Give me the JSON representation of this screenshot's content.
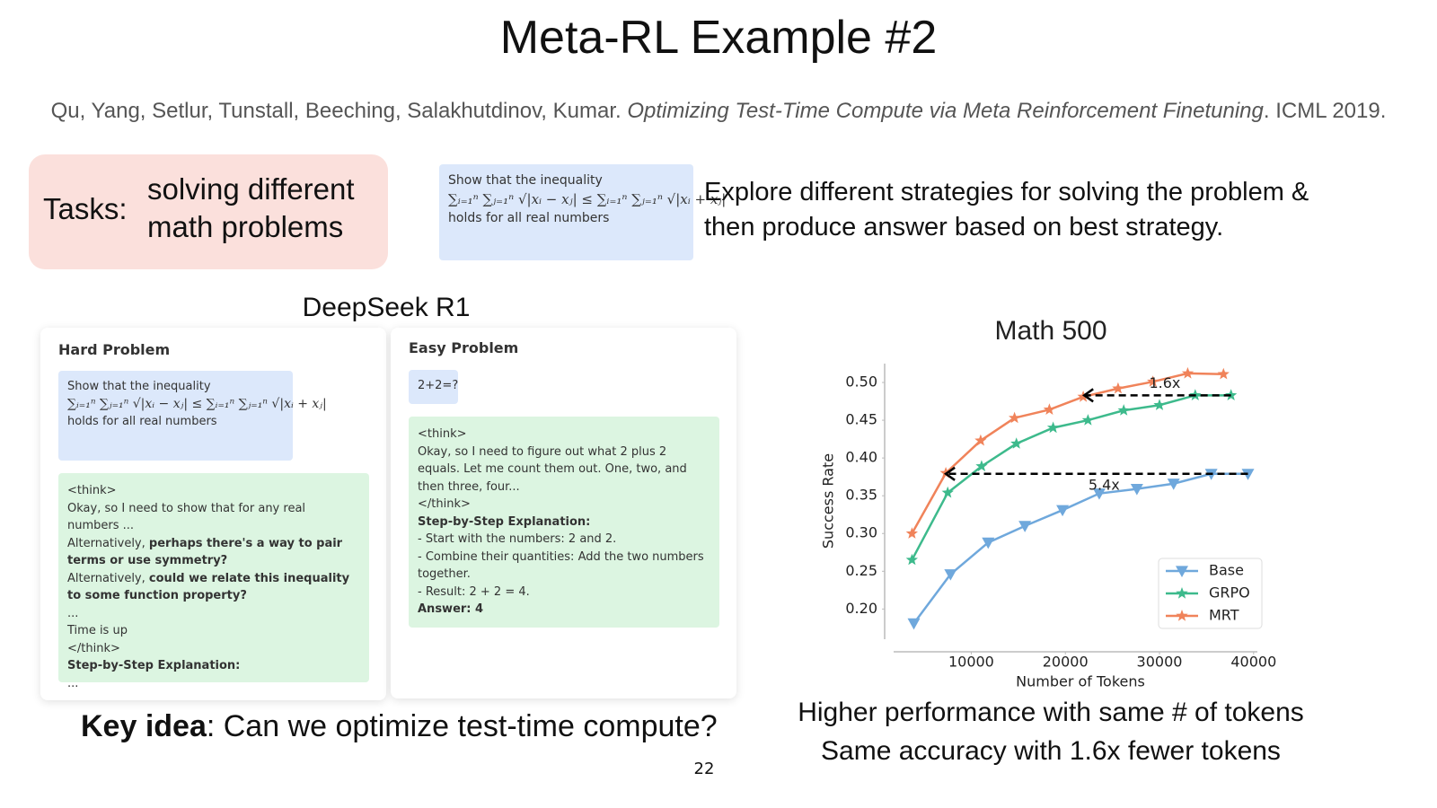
{
  "title": "Meta-RL Example #2",
  "citation": {
    "authors": "Qu, Yang, Setlur, Tunstall, Beeching, Salakhutdinov, Kumar.",
    "paper": "Optimizing Test-Time Compute via Meta Reinforcement Finetuning",
    "venue": ". ICML 2019."
  },
  "tasks": {
    "label": "Tasks:",
    "lines": [
      "solving different",
      "math problems"
    ]
  },
  "problem": {
    "intro": "Show that the inequality",
    "formula": "∑ᵢ₌₁ⁿ ∑ⱼ₌₁ⁿ √|xᵢ − xⱼ| ≤ ∑ᵢ₌₁ⁿ ∑ⱼ₌₁ⁿ √|xᵢ + xⱼ|",
    "outro": "holds for all real numbers"
  },
  "explore": [
    "Explore different strategies for solving the problem &",
    "then produce answer based on best strategy."
  ],
  "deepseek_label": "DeepSeek R1",
  "hard_card": {
    "heading": "Hard Problem",
    "problem": {
      "intro": "Show that the inequality",
      "formula": "∑ᵢ₌₁ⁿ ∑ⱼ₌₁ⁿ √|xᵢ − xⱼ| ≤ ∑ᵢ₌₁ⁿ ∑ⱼ₌₁ⁿ √|xᵢ + xⱼ|",
      "outro": "holds for all real numbers"
    },
    "think": [
      [
        {
          "text": "<think>"
        }
      ],
      [
        {
          "text": "Okay, so I need to show that for any real numbers ..."
        }
      ],
      [
        {
          "text": "Alternatively, "
        },
        {
          "text": "perhaps there's a way to pair terms or use symmetry?",
          "bold": true
        }
      ],
      [
        {
          "text": "Alternatively, "
        },
        {
          "text": "could we relate this inequality to some function property?",
          "bold": true
        }
      ],
      [
        {
          "text": "..."
        }
      ],
      [
        {
          "text": "Time is up"
        }
      ],
      [
        {
          "text": "</think>"
        }
      ],
      [
        {
          "text": "Step-by-Step Explanation:",
          "bold": true
        }
      ],
      [
        {
          "text": "..."
        }
      ]
    ]
  },
  "easy_card": {
    "heading": "Easy Problem",
    "problem": "2+2=?",
    "think": [
      [
        {
          "text": "<think>"
        }
      ],
      [
        {
          "text": "Okay, so I need to figure out what 2 plus 2 equals. Let me count them out. One, two, and then three, four..."
        }
      ],
      [
        {
          "text": "</think>"
        }
      ],
      [
        {
          "text": "Step-by-Step Explanation:",
          "bold": true
        }
      ],
      [
        {
          "text": "- Start with the numbers: 2 and 2."
        }
      ],
      [
        {
          "text": "- Combine their quantities: Add the two numbers together."
        }
      ],
      [
        {
          "text": "- Result: 2 + 2 = 4."
        }
      ],
      [
        {
          "text": "Answer: 4",
          "bold": true
        }
      ]
    ]
  },
  "key_idea": {
    "label": "Key idea",
    "text": ": Can we optimize test-time compute?"
  },
  "page_number": "22",
  "chart_data": {
    "type": "line",
    "title": "Math 500",
    "x_label": "Number of Tokens",
    "y_label": "Success Rate",
    "xlim": [
      800,
      40400
    ],
    "ylim": [
      0.16,
      0.525
    ],
    "xticks": [
      10000,
      20000,
      30000,
      40000
    ],
    "yticks": [
      {
        "value": 0.2,
        "label": "0.20"
      },
      {
        "value": 0.25,
        "label": "0.25"
      },
      {
        "value": 0.3,
        "label": "0.30"
      },
      {
        "value": 0.35,
        "label": "0.35"
      },
      {
        "value": 0.4,
        "label": "0.40"
      },
      {
        "value": 0.45,
        "label": "0.45"
      },
      {
        "value": 0.5,
        "label": "0.50"
      }
    ],
    "grid": false,
    "legend": "lower right",
    "series": [
      {
        "name": "Base",
        "color": "#6fa8dc",
        "marker": "triangle-down",
        "x": [
          3900,
          7800,
          11800,
          15700,
          19700,
          23600,
          27600,
          31500,
          35500,
          39400
        ],
        "values": [
          0.181,
          0.246,
          0.288,
          0.31,
          0.331,
          0.353,
          0.359,
          0.366,
          0.379,
          0.379
        ]
      },
      {
        "name": "GRPO",
        "color": "#3dba8c",
        "marker": "star",
        "x": [
          3700,
          7500,
          11100,
          14800,
          18700,
          22400,
          26200,
          30000,
          33800,
          37600
        ],
        "values": [
          0.265,
          0.354,
          0.389,
          0.419,
          0.44,
          0.45,
          0.463,
          0.47,
          0.483,
          0.483
        ]
      },
      {
        "name": "MRT",
        "color": "#f0835a",
        "marker": "star",
        "x": [
          3700,
          7300,
          11000,
          14600,
          18300,
          21900,
          25600,
          29300,
          33000,
          36800
        ],
        "values": [
          0.3,
          0.38,
          0.423,
          0.453,
          0.464,
          0.481,
          0.492,
          0.501,
          0.512,
          0.511
        ]
      }
    ],
    "arrows": [
      {
        "label": "1.6x",
        "from": [
          37600,
          0.483
        ],
        "to": [
          22000,
          0.483
        ]
      },
      {
        "label": "5.4x",
        "from": [
          39400,
          0.379
        ],
        "to": [
          7300,
          0.379
        ]
      }
    ],
    "caption": [
      "Higher performance with same # of tokens",
      "Same accuracy with 1.6x fewer tokens"
    ]
  }
}
